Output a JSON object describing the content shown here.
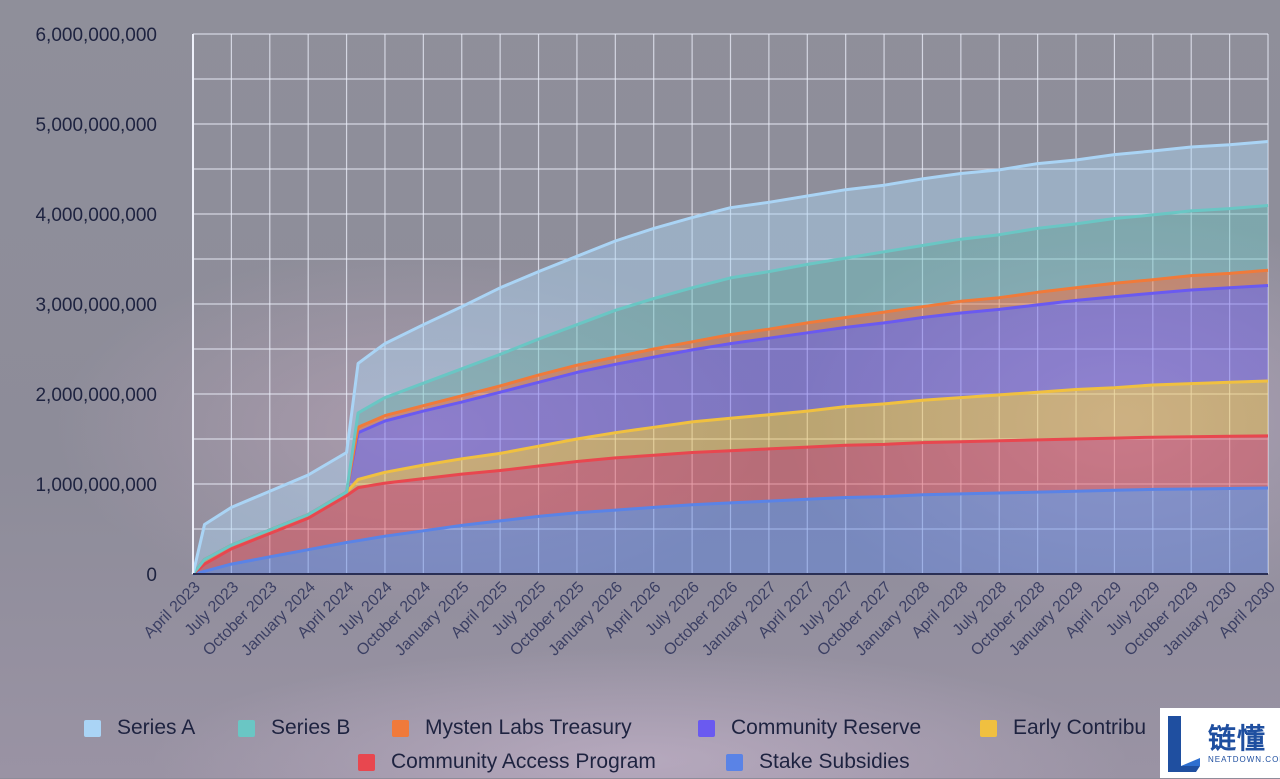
{
  "chart_data": {
    "type": "area",
    "stacked": true,
    "title": "",
    "xlabel": "",
    "ylabel": "",
    "ylim": [
      0,
      6000000000
    ],
    "yticks": [
      0,
      1000000000,
      2000000000,
      3000000000,
      4000000000,
      5000000000,
      6000000000
    ],
    "ytick_labels": [
      "0",
      "1,000,000,000",
      "2,000,000,000",
      "3,000,000,000",
      "4,000,000,000",
      "5,000,000,000",
      "6,000,000,000"
    ],
    "xtick_labels": [
      "April 2023",
      "July 2023",
      "October 2023",
      "January 2024",
      "April 2024",
      "July 2024",
      "October 2024",
      "January 2025",
      "April 2025",
      "July 2025",
      "October 2025",
      "January 2026",
      "April 2026",
      "July 2026",
      "October 2026",
      "January 2027",
      "April 2027",
      "July 2027",
      "October 2027",
      "January 2028",
      "April 2028",
      "July 2028",
      "October 2028",
      "January 2029",
      "April 2029",
      "July 2029",
      "October 2029",
      "January 2030",
      "April 2030"
    ],
    "x_index": [
      0,
      0.3,
      1,
      2,
      3,
      4,
      4.3,
      5,
      6,
      7,
      8,
      9,
      10,
      11,
      12,
      13,
      14,
      15,
      16,
      17,
      18,
      19,
      20,
      21,
      22,
      23,
      24,
      25,
      26,
      27,
      28
    ],
    "grid": true,
    "legend_position": "bottom",
    "series": [
      {
        "name": "Stake Subsidies",
        "color": "#5a83e6",
        "values": [
          0,
          30000000,
          110000000,
          190000000,
          270000000,
          350000000,
          370000000,
          420000000,
          480000000,
          540000000,
          590000000,
          640000000,
          680000000,
          710000000,
          740000000,
          770000000,
          790000000,
          810000000,
          830000000,
          850000000,
          860000000,
          880000000,
          890000000,
          900000000,
          910000000,
          920000000,
          930000000,
          940000000,
          945000000,
          950000000,
          955000000
        ]
      },
      {
        "name": "Community Access Program",
        "color": "#e8474f",
        "values": [
          0,
          80000000,
          170000000,
          260000000,
          350000000,
          520000000,
          590000000,
          590000000,
          580000000,
          570000000,
          560000000,
          560000000,
          570000000,
          580000000,
          580000000,
          580000000,
          580000000,
          580000000,
          580000000,
          580000000,
          580000000,
          580000000,
          580000000,
          580000000,
          580000000,
          580000000,
          580000000,
          580000000,
          580000000,
          580000000,
          580000000
        ]
      },
      {
        "name": "Early Contributors",
        "color": "#f0c040",
        "values": [
          0,
          50000000,
          40000000,
          40000000,
          40000000,
          40000000,
          90000000,
          120000000,
          150000000,
          170000000,
          190000000,
          220000000,
          250000000,
          280000000,
          310000000,
          340000000,
          360000000,
          380000000,
          400000000,
          430000000,
          450000000,
          470000000,
          490000000,
          510000000,
          530000000,
          550000000,
          560000000,
          580000000,
          590000000,
          600000000,
          610000000
        ]
      },
      {
        "name": "Community Reserve",
        "color": "#6a5af0",
        "values": [
          0,
          0,
          0,
          0,
          0,
          0,
          520000000,
          570000000,
          600000000,
          630000000,
          680000000,
          710000000,
          740000000,
          760000000,
          780000000,
          800000000,
          830000000,
          850000000,
          870000000,
          880000000,
          900000000,
          920000000,
          940000000,
          950000000,
          970000000,
          990000000,
          1010000000,
          1020000000,
          1040000000,
          1050000000,
          1060000000
        ]
      },
      {
        "name": "Mysten Labs Treasury",
        "color": "#f07a3a",
        "values": [
          0,
          0,
          0,
          0,
          0,
          0,
          60000000,
          60000000,
          60000000,
          70000000,
          70000000,
          80000000,
          80000000,
          80000000,
          90000000,
          90000000,
          100000000,
          100000000,
          110000000,
          110000000,
          120000000,
          120000000,
          130000000,
          130000000,
          140000000,
          140000000,
          150000000,
          150000000,
          160000000,
          160000000,
          170000000
        ]
      },
      {
        "name": "Series B",
        "color": "#6ac6c4",
        "values": [
          0,
          0,
          0,
          0,
          0,
          0,
          160000000,
          200000000,
          250000000,
          300000000,
          350000000,
          400000000,
          450000000,
          520000000,
          560000000,
          600000000,
          630000000,
          640000000,
          650000000,
          660000000,
          670000000,
          680000000,
          690000000,
          700000000,
          710000000,
          710000000,
          720000000,
          720000000,
          720000000,
          720000000,
          720000000
        ]
      },
      {
        "name": "Series A",
        "color": "#aad4f5",
        "values": [
          0,
          390000000,
          420000000,
          430000000,
          440000000,
          440000000,
          550000000,
          600000000,
          650000000,
          690000000,
          740000000,
          750000000,
          760000000,
          770000000,
          780000000,
          780000000,
          780000000,
          770000000,
          760000000,
          760000000,
          740000000,
          740000000,
          730000000,
          720000000,
          720000000,
          710000000,
          710000000,
          710000000,
          710000000,
          710000000,
          710000000
        ]
      }
    ]
  },
  "legend": {
    "items": [
      {
        "label": "Series A",
        "color": "#aad4f5"
      },
      {
        "label": "Series B",
        "color": "#6ac6c4"
      },
      {
        "label": "Mysten Labs Treasury",
        "color": "#f07a3a"
      },
      {
        "label": "Community Reserve",
        "color": "#6a5af0"
      },
      {
        "label": "Early Contribu",
        "color": "#f0c040"
      },
      {
        "label": "Community Access Program",
        "color": "#e8474f"
      },
      {
        "label": "Stake Subsidies",
        "color": "#5a83e6"
      }
    ]
  },
  "watermark": {
    "chinese": "链懂",
    "english": "NEATDOWN.COM"
  }
}
